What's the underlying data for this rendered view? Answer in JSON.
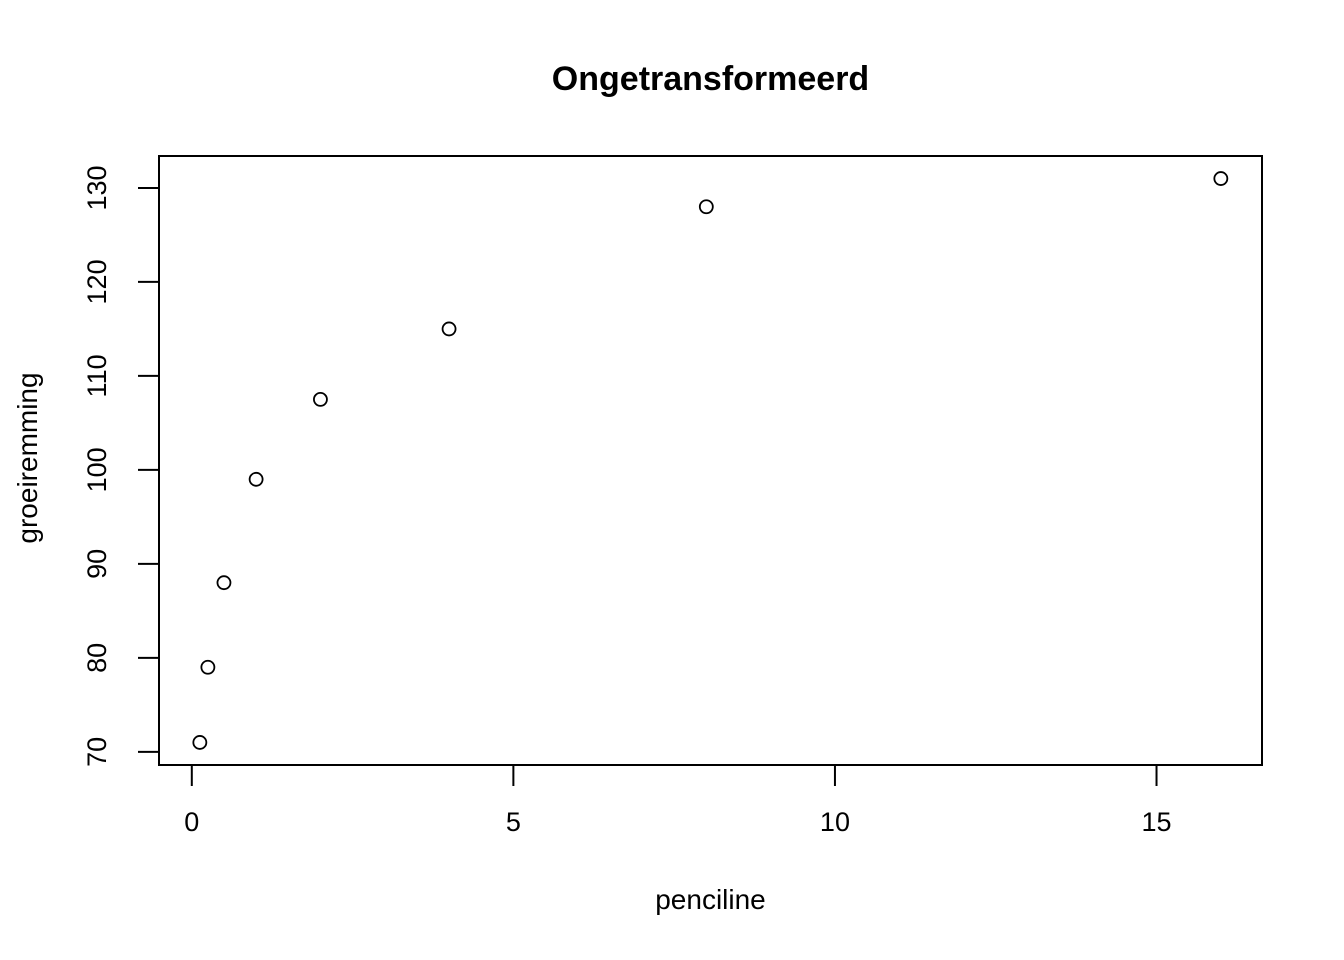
{
  "chart_data": {
    "type": "scatter",
    "title": "Ongetransformeerd",
    "xlabel": "penciline",
    "ylabel": "groeiremming",
    "points": [
      {
        "x": 0.125,
        "y": 71
      },
      {
        "x": 0.25,
        "y": 79
      },
      {
        "x": 0.5,
        "y": 88
      },
      {
        "x": 1,
        "y": 99
      },
      {
        "x": 2,
        "y": 107.5
      },
      {
        "x": 4,
        "y": 115
      },
      {
        "x": 8,
        "y": 128
      },
      {
        "x": 16,
        "y": 131
      }
    ],
    "xticks": [
      0,
      5,
      10,
      15
    ],
    "yticks": [
      70,
      80,
      90,
      100,
      110,
      120,
      130
    ],
    "xtick_labels": [
      "0",
      "5",
      "10",
      "15"
    ],
    "ytick_labels": [
      "70",
      "80",
      "90",
      "100",
      "110",
      "120",
      "130"
    ],
    "xlim": [
      -0.51,
      16.64
    ],
    "ylim": [
      68.6,
      133.4
    ],
    "grid": false,
    "legend": null,
    "marker": "open-circle",
    "marker_color": "#000000",
    "axis_color": "#000000",
    "background_color": "#ffffff"
  }
}
